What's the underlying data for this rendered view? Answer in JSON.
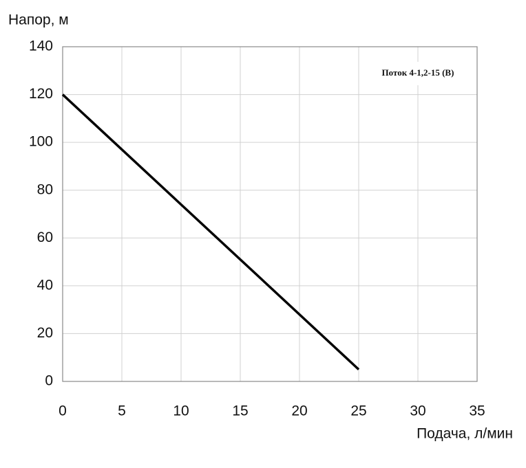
{
  "chart_data": {
    "type": "line",
    "x_label": "Подача, л/мин",
    "y_label": "Напор, м",
    "series": [
      {
        "name": "Поток 4-1,2-15 (В)",
        "color": "#000000",
        "x": [
          0,
          25
        ],
        "values": [
          120,
          5
        ]
      }
    ],
    "xlim": [
      0,
      35
    ],
    "xticks": [
      0,
      5,
      10,
      15,
      20,
      25,
      30,
      35
    ],
    "ylim": [
      0,
      140
    ],
    "yticks": [
      0,
      20,
      40,
      60,
      80,
      100,
      120,
      140
    ],
    "grid": true,
    "legend": "upper right"
  }
}
